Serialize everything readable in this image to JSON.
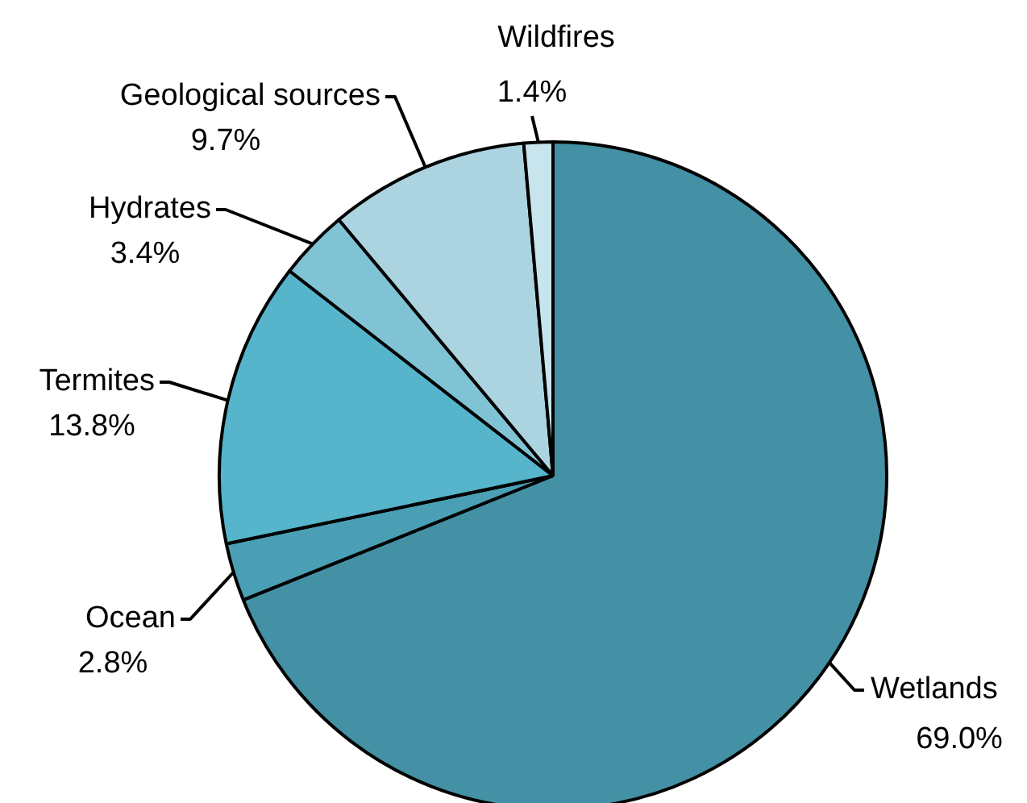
{
  "chart_data": {
    "type": "pie",
    "categories": [
      "Wetlands",
      "Ocean",
      "Termites",
      "Hydrates",
      "Geological sources",
      "Wildfires"
    ],
    "values": [
      69.0,
      2.8,
      13.8,
      3.4,
      9.7,
      1.4
    ],
    "colors": [
      "#4490a4",
      "#4a9fb5",
      "#56b4cb",
      "#7fc3d5",
      "#acd4e0",
      "#c8e4ec"
    ],
    "value_labels": [
      "69.0%",
      "2.8%",
      "13.8%",
      "3.4%",
      "9.7%",
      "1.4%"
    ],
    "legend": false
  }
}
